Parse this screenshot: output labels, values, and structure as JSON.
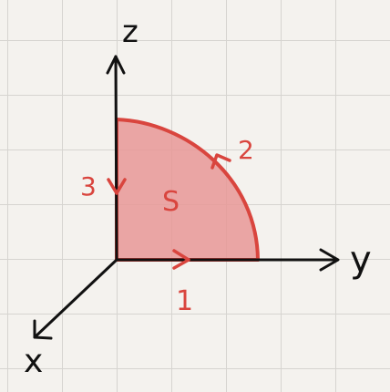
{
  "axes": {
    "z_label": "z",
    "y_label": "y",
    "x_label": "x"
  },
  "region": {
    "label": "S",
    "fill": "#e89896",
    "stroke": "#d9453e"
  },
  "path_labels": {
    "segment_1": "1",
    "segment_2": "2",
    "segment_3": "3"
  },
  "colors": {
    "background": "#f4f2ee",
    "grid": "#d6d4d0",
    "axis": "#111111",
    "accent": "#d9453e"
  }
}
